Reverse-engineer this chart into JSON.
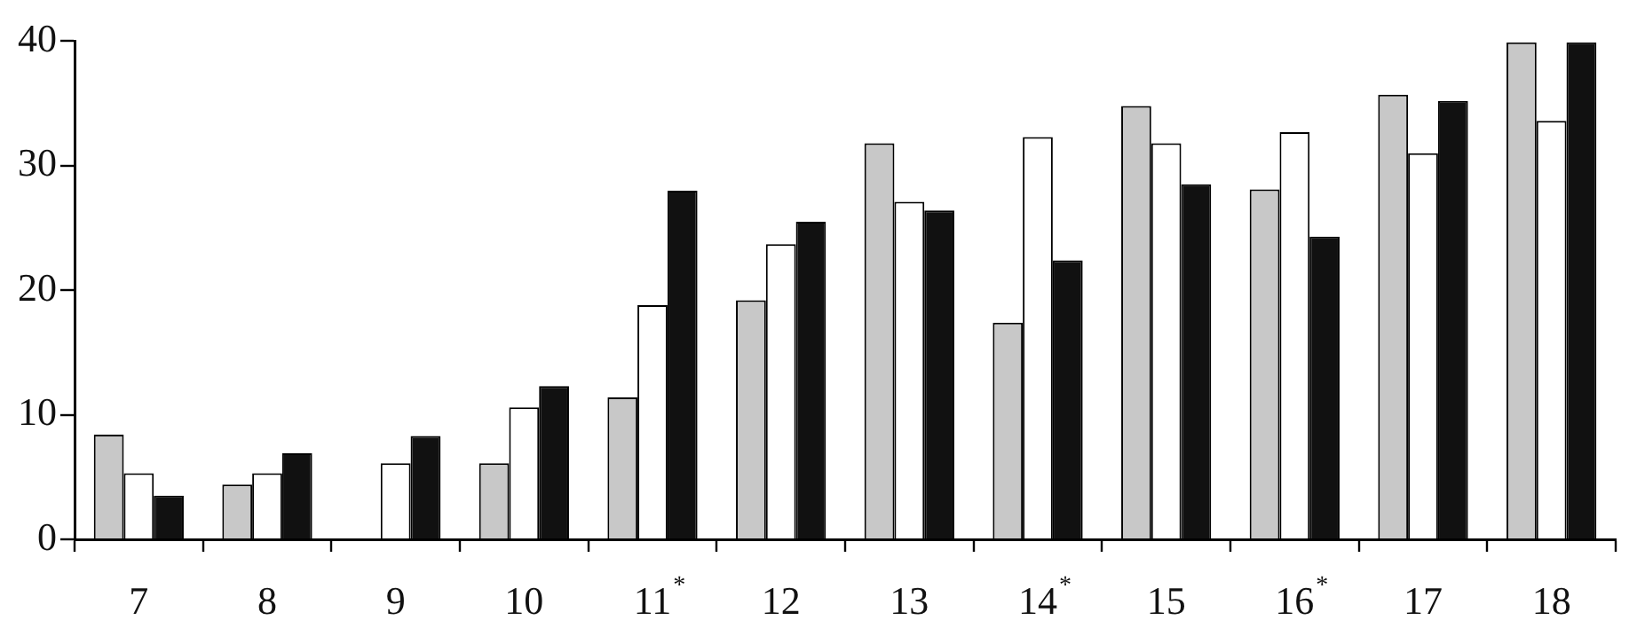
{
  "chart_data": {
    "type": "bar",
    "categories": [
      "7",
      "8",
      "9",
      "10",
      "11$^{*}$",
      "12",
      "13",
      "14$^{*}$",
      "15",
      "16$^{*}$",
      "17",
      "18"
    ],
    "series": [
      {
        "color": "#c8c8c8",
        "values": [
          8.4,
          4.4,
          null,
          6.1,
          11.4,
          19.2,
          31.8,
          17.4,
          34.8,
          28.1,
          35.7,
          39.9
        ]
      },
      {
        "color": "#ffffff",
        "values": [
          5.3,
          5.3,
          6.1,
          10.6,
          18.8,
          23.7,
          27.1,
          32.3,
          31.8,
          32.7,
          31.0,
          33.6
        ]
      },
      {
        "color": "#111111",
        "values": [
          3.5,
          6.9,
          8.3,
          12.3,
          28.0,
          25.5,
          26.4,
          22.4,
          28.5,
          24.3,
          35.2,
          39.9
        ]
      }
    ],
    "ylim": [
      0,
      40
    ],
    "yticks": [
      0,
      10,
      20,
      30,
      40
    ],
    "grid": false,
    "legend": false
  }
}
